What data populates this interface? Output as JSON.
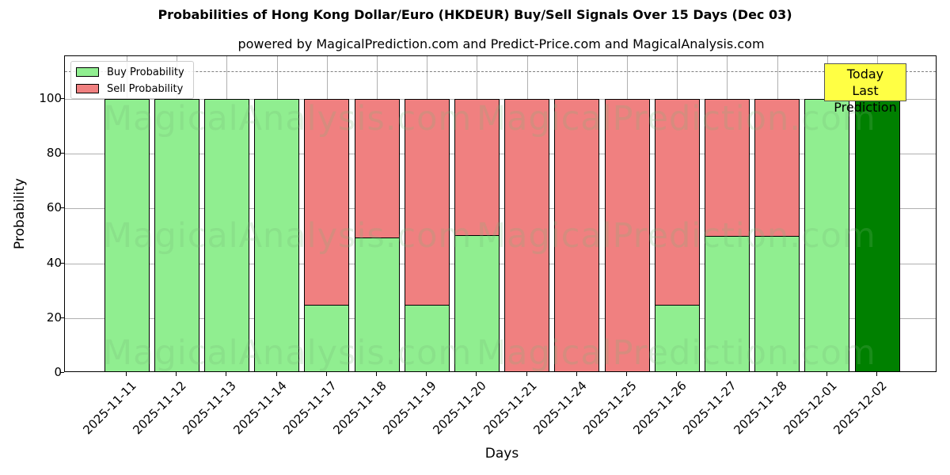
{
  "chart_data": {
    "type": "bar",
    "stacked": true,
    "title": "Probabilities of Hong Kong Dollar/Euro (HKDEUR) Buy/Sell Signals Over 15 Days (Dec 03)",
    "subtitle": "powered by MagicalPrediction.com and Predict-Price.com and MagicalAnalysis.com",
    "xlabel": "Days",
    "ylabel": "Probability",
    "ylim": [
      0,
      115
    ],
    "yticks": [
      0,
      20,
      40,
      60,
      80,
      100
    ],
    "grid": true,
    "legend_position": "upper left",
    "reference_line": {
      "y": 110,
      "style": "dashed",
      "color": "#808080"
    },
    "categories": [
      "2025-11-11",
      "2025-11-12",
      "2025-11-13",
      "2025-11-14",
      "2025-11-17",
      "2025-11-18",
      "2025-11-19",
      "2025-11-20",
      "2025-11-21",
      "2025-11-24",
      "2025-11-25",
      "2025-11-26",
      "2025-11-27",
      "2025-11-28",
      "2025-12-01",
      "2025-12-02"
    ],
    "series": [
      {
        "name": "Buy Probability",
        "color": "#90ee90",
        "values": [
          100,
          100,
          100,
          100,
          25,
          49.5,
          25,
          50.3,
          0,
          0,
          0,
          25,
          50,
          50,
          100,
          100
        ]
      },
      {
        "name": "Sell Probability",
        "color": "#f08080",
        "values": [
          0,
          0,
          0,
          0,
          75,
          50.5,
          75,
          49.7,
          100,
          100,
          100,
          75,
          50,
          50,
          0,
          0
        ]
      }
    ],
    "highlight": {
      "index": 15,
      "color": "#008000",
      "label": "Today\nLast Prediction"
    },
    "annotations": [
      "Today",
      "Last Prediction"
    ],
    "watermarks": [
      "MagicalAnalysis.com",
      "MagicalPrediction.com"
    ]
  },
  "labels": {
    "legend_buy": "Buy Probability",
    "legend_sell": "Sell Probability",
    "today_line1": "Today",
    "today_line2": "Last Prediction",
    "wm_left": "MagicalAnalysis.com",
    "wm_right": "MagicalPrediction.com"
  }
}
